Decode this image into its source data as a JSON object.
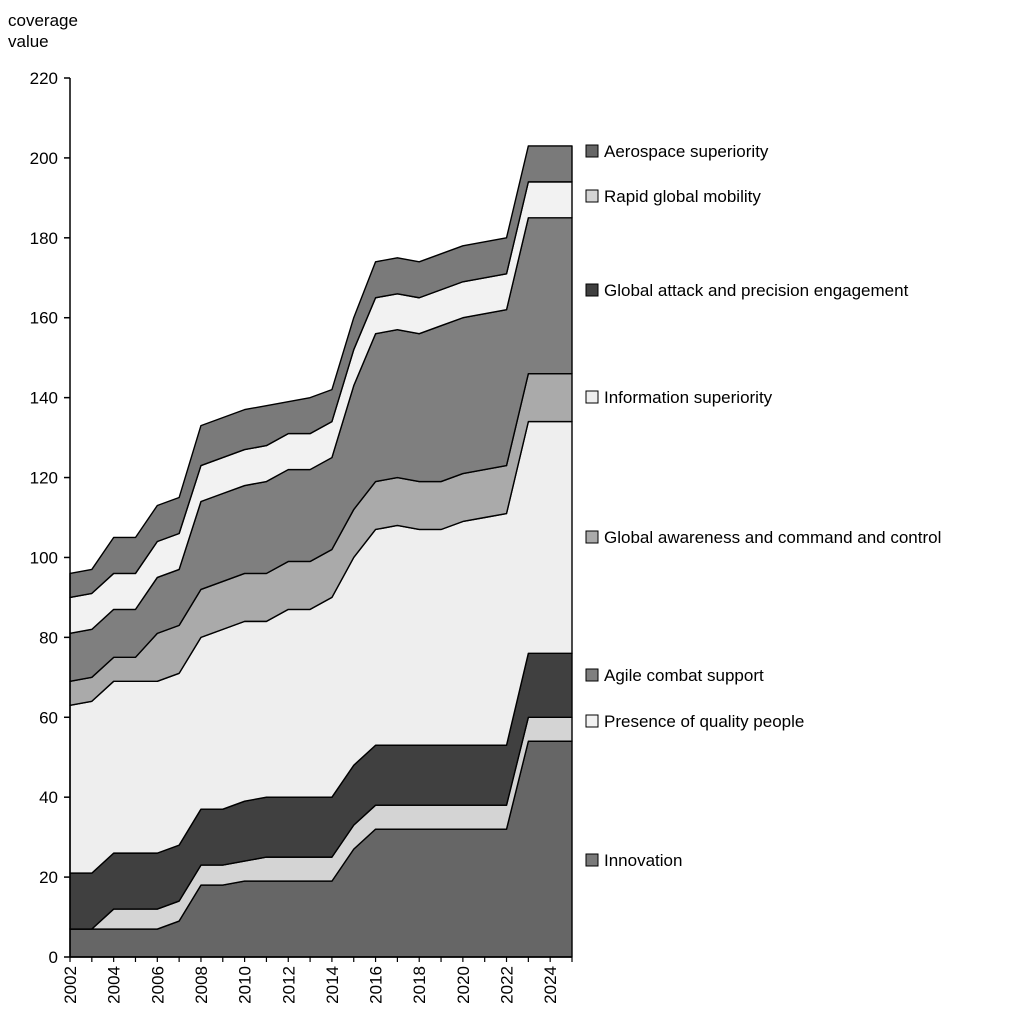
{
  "chart_data": {
    "type": "area",
    "stacked": true,
    "ylabel": "coverage\nvalue",
    "xlabel": "",
    "xlim": [
      2002,
      2025
    ],
    "ylim": [
      0,
      220
    ],
    "yticks": [
      0,
      20,
      40,
      60,
      80,
      100,
      120,
      140,
      160,
      180,
      200,
      220
    ],
    "xticks": [
      2002,
      2004,
      2006,
      2008,
      2010,
      2012,
      2014,
      2016,
      2018,
      2020,
      2022,
      2024
    ],
    "grid": false,
    "legend_position": "right",
    "x": [
      2002,
      2003,
      2004,
      2005,
      2006,
      2007,
      2008,
      2009,
      2010,
      2011,
      2012,
      2013,
      2014,
      2015,
      2016,
      2017,
      2018,
      2019,
      2020,
      2021,
      2022,
      2023,
      2024,
      2025
    ],
    "series": [
      {
        "name": "Aerospace superiority",
        "color": "#666666",
        "values": [
          7,
          7,
          7,
          7,
          7,
          9,
          18,
          18,
          19,
          19,
          19,
          19,
          19,
          27,
          32,
          32,
          32,
          32,
          32,
          32,
          32,
          54,
          54,
          54
        ]
      },
      {
        "name": "Rapid global mobility",
        "color": "#d4d4d4",
        "values": [
          0,
          0,
          5,
          5,
          5,
          5,
          5,
          5,
          5,
          6,
          6,
          6,
          6,
          6,
          6,
          6,
          6,
          6,
          6,
          6,
          6,
          6,
          6,
          6
        ]
      },
      {
        "name": "Global attack and precision engagement",
        "color": "#404040",
        "values": [
          14,
          14,
          14,
          14,
          14,
          14,
          14,
          14,
          15,
          15,
          15,
          15,
          15,
          15,
          15,
          15,
          15,
          15,
          15,
          15,
          15,
          16,
          16,
          16
        ]
      },
      {
        "name": "Information superiority",
        "color": "#eeeeee",
        "values": [
          42,
          43,
          43,
          43,
          43,
          43,
          43,
          45,
          45,
          44,
          47,
          47,
          50,
          52,
          54,
          55,
          54,
          54,
          56,
          57,
          58,
          58,
          58,
          58
        ]
      },
      {
        "name": "Global awareness and command and control",
        "color": "#aaaaaa",
        "values": [
          6,
          6,
          6,
          6,
          12,
          12,
          12,
          12,
          12,
          12,
          12,
          12,
          12,
          12,
          12,
          12,
          12,
          12,
          12,
          12,
          12,
          12,
          12,
          12
        ]
      },
      {
        "name": "Agile combat support",
        "color": "#7f7f7f",
        "values": [
          12,
          12,
          12,
          12,
          14,
          14,
          22,
          22,
          22,
          23,
          23,
          23,
          23,
          31,
          37,
          37,
          37,
          39,
          39,
          39,
          39,
          39,
          39,
          39
        ]
      },
      {
        "name": "Presence of quality people",
        "color": "#f2f2f2",
        "values": [
          9,
          9,
          9,
          9,
          9,
          9,
          9,
          9,
          9,
          9,
          9,
          9,
          9,
          9,
          9,
          9,
          9,
          9,
          9,
          9,
          9,
          9,
          9,
          9
        ]
      },
      {
        "name": "Innovation",
        "color": "#7a7a7a",
        "values": [
          6,
          6,
          9,
          9,
          9,
          9,
          10,
          10,
          10,
          10,
          8,
          9,
          8,
          8,
          9,
          9,
          9,
          9,
          9,
          9,
          9,
          9,
          9,
          9
        ]
      }
    ]
  }
}
